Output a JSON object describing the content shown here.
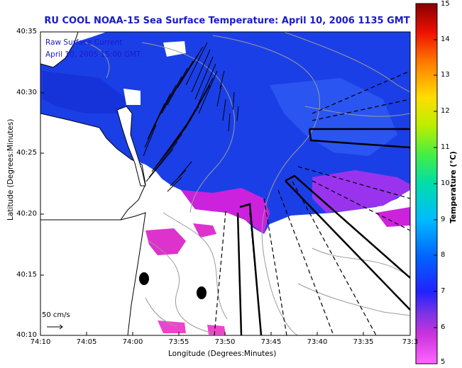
{
  "title": "RU COOL  NOAA-15  Sea Surface Temperature:  April 10, 2006 1135 GMT",
  "overlay": {
    "line1": "Raw Surface Current",
    "line2": "April 10, 2005 15:00 GMT"
  },
  "axes": {
    "xlabel": "Longitude (Degrees:Minutes)",
    "ylabel": "Latitude (Degrees:Minutes)",
    "xticks": [
      "74:10",
      "74:05",
      "74:00",
      "73:55",
      "73:50",
      "73:45",
      "73:40",
      "73:35",
      "73:3"
    ],
    "yticks": [
      "40:35",
      "40:30",
      "40:25",
      "40:20",
      "40:15",
      "40:10"
    ]
  },
  "colorbar": {
    "label": "Temperature (°C)",
    "ticks": [
      "15",
      "14",
      "13",
      "12",
      "11",
      "10",
      "9",
      "8",
      "7",
      "6",
      "5"
    ],
    "min": 5,
    "max": 15
  },
  "scale": {
    "label": "50 cm/s"
  },
  "colors": {
    "title": "#1a1acc",
    "sst_main": "#1b3fe6",
    "sst_cold": "#dd22cc",
    "land": "#ffffff",
    "contour": "#9a9a9a"
  }
}
